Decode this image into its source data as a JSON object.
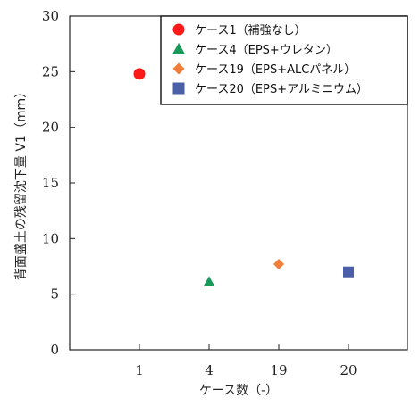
{
  "chart_data": {
    "type": "scatter",
    "xlabel": "ケース数（-）",
    "ylabel": "背面盛土の残留沈下量 V1（mm）",
    "categories": [
      "1",
      "4",
      "19",
      "20"
    ],
    "ylim": [
      0,
      30
    ],
    "yticks": [
      0,
      5,
      10,
      15,
      20,
      25,
      30
    ],
    "grid": false,
    "legend_position": "top-right",
    "series": [
      {
        "name": "ケース1（補強なし）",
        "category": "1",
        "value": 24.8,
        "marker": "circle",
        "color": "#ff1a1a"
      },
      {
        "name": "ケース4（EPS+ウレタン）",
        "category": "4",
        "value": 6.1,
        "marker": "triangle",
        "color": "#1a9a5a"
      },
      {
        "name": "ケース19（EPS+ALCパネル）",
        "category": "19",
        "value": 7.7,
        "marker": "diamond",
        "color": "#f07d3a"
      },
      {
        "name": "ケース20（EPS+アルミニウム）",
        "category": "20",
        "value": 7.0,
        "marker": "square",
        "color": "#4a5fa8"
      }
    ]
  }
}
